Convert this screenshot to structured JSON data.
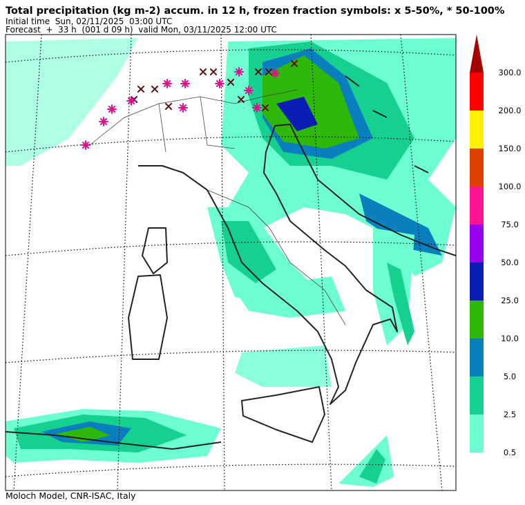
{
  "header": {
    "title": "Total precipitation (kg m-2) accum. in 12 h, frozen fraction symbols: x 5-50%, * 50-100%",
    "initial_time": "Initial time  Sun, 02/11/2025  03:00 UTC",
    "forecast": "Forecast  +  33 h  (001 d 09 h)  valid Mon, 03/11/2025 12:00 UTC"
  },
  "colorbar": {
    "labels": [
      "0.5",
      "2.5",
      "5.0",
      "10.0",
      "25.0",
      "50.0",
      "75.0",
      "100.0",
      "150.0",
      "200.0",
      "300.0"
    ],
    "colors": [
      "#6dffd2",
      "#16d08f",
      "#0a7fbd",
      "#2eb80a",
      "#0a1eb4",
      "#9a00f0",
      "#ff1493",
      "#e04000",
      "#fff000",
      "#ff0000",
      "#a50000"
    ]
  },
  "footer": "Moloch Model, CNR-ISAC, Italy"
}
